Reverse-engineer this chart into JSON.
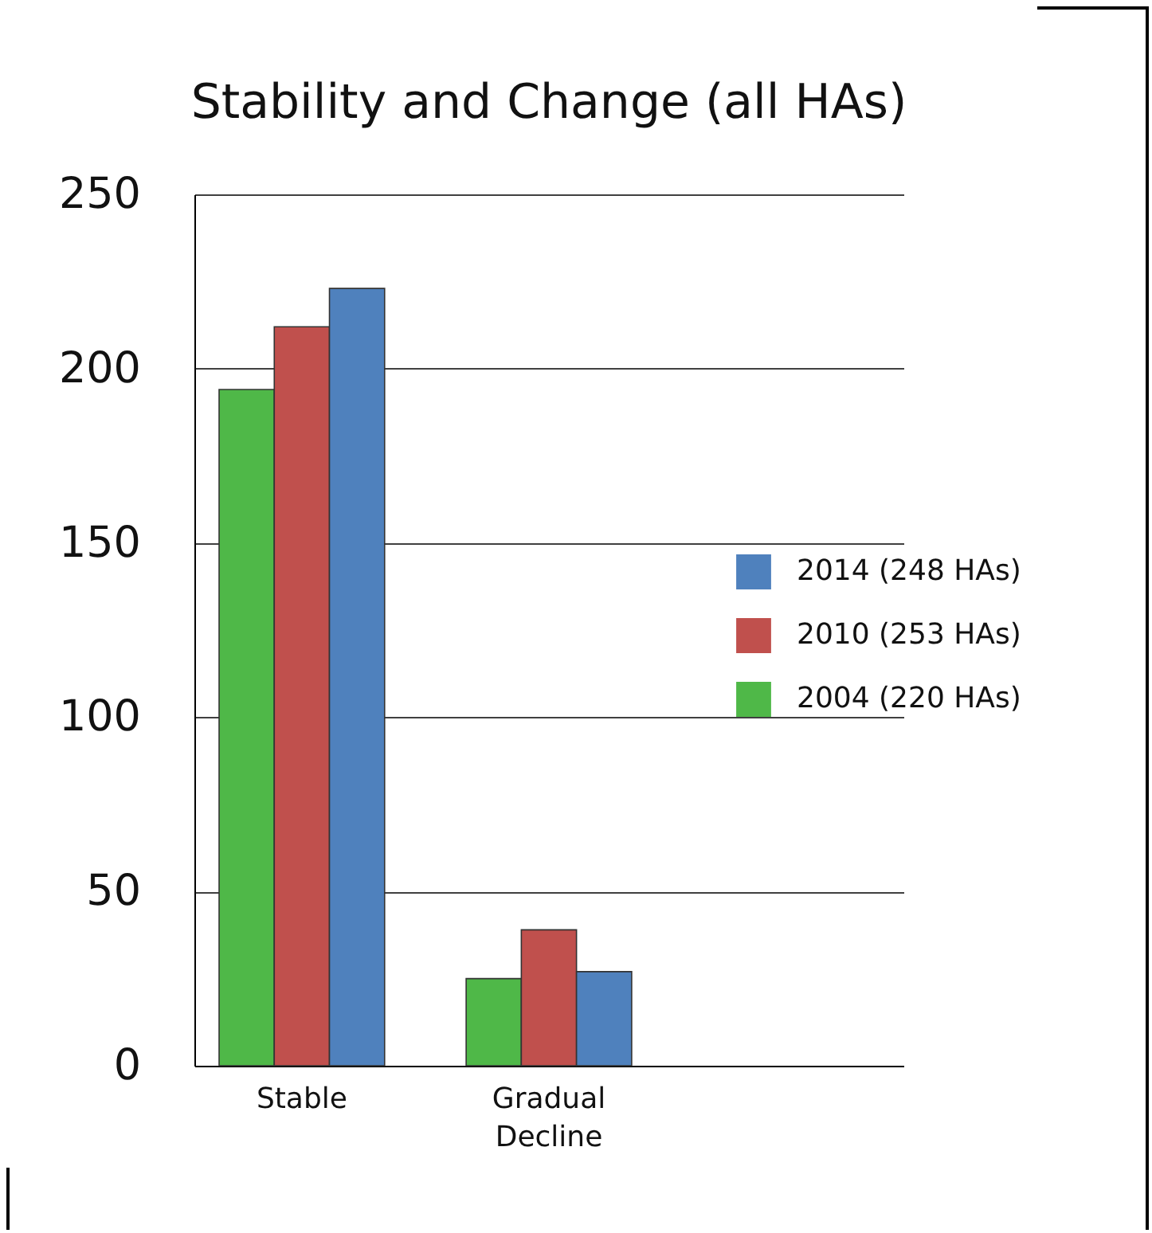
{
  "chart_data": {
    "type": "bar",
    "title": "Stability and Change (all HAs)",
    "categories": [
      "Stable",
      "Gradual Decline",
      null
    ],
    "series": [
      {
        "name": "2004 (220 HAs)",
        "color": "#4fb848",
        "values": [
          194,
          25,
          null
        ]
      },
      {
        "name": "2010 (253 HAs)",
        "color": "#c0504d",
        "values": [
          212,
          39,
          null
        ]
      },
      {
        "name": "2014 (248 HAs)",
        "color": "#4f81bd",
        "values": [
          223,
          27,
          null
        ]
      }
    ],
    "ylim": [
      0,
      250
    ],
    "yticks": [
      0,
      50,
      100,
      150,
      200,
      250
    ],
    "grid": "y",
    "legend": "right"
  }
}
